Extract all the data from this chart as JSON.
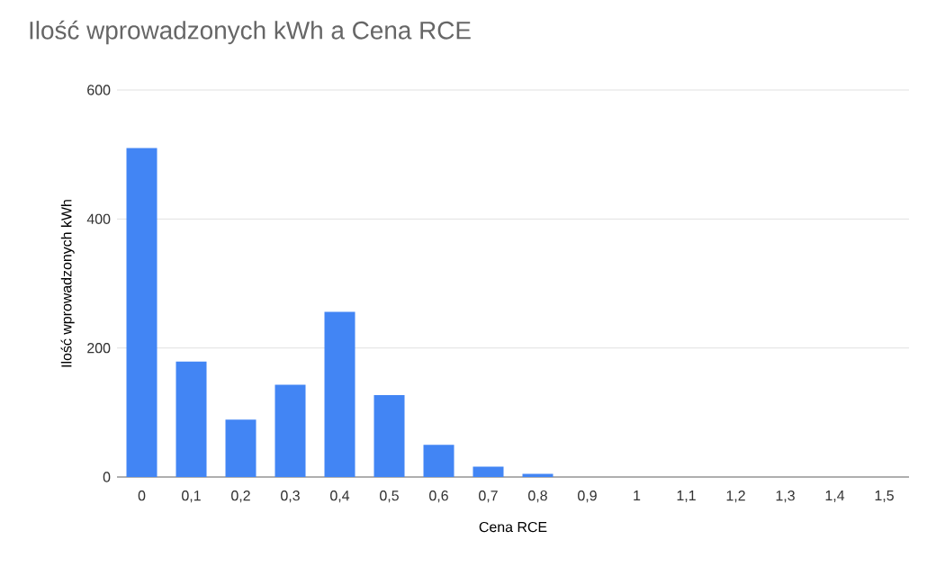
{
  "chart_data": {
    "type": "bar",
    "title": "Ilość wprowadzonych kWh a Cena RCE",
    "xlabel": "Cena RCE",
    "ylabel": "Ilość wprowadzonych kWh",
    "categories": [
      "0",
      "0,1",
      "0,2",
      "0,3",
      "0,4",
      "0,5",
      "0,6",
      "0,7",
      "0,8",
      "0,9",
      "1",
      "1,1",
      "1,2",
      "1,3",
      "1,4",
      "1,5"
    ],
    "values": [
      510,
      179,
      89,
      143,
      256,
      127,
      50,
      16,
      5,
      0,
      0,
      0,
      0,
      0,
      0,
      0
    ],
    "color": "#4285f4",
    "ylim": [
      0,
      600
    ],
    "yticks": [
      0,
      200,
      400,
      600
    ],
    "grid": "y"
  }
}
